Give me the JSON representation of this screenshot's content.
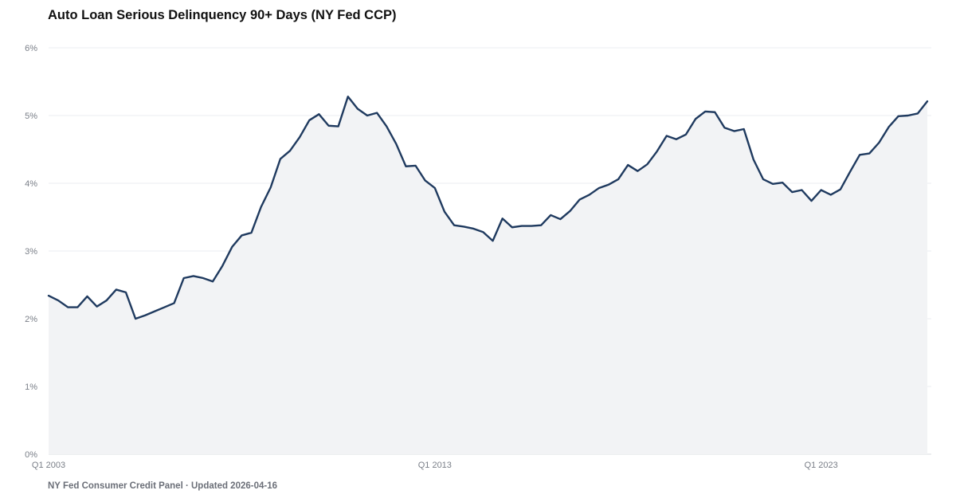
{
  "header": {
    "title": "Auto Loan Serious Delinquency 90+ Days (NY Fed CCP)"
  },
  "footer": {
    "source": "NY Fed Consumer Credit Panel · Updated 2026-04-16"
  },
  "colors": {
    "line": "#1f3a5f",
    "area": "#f2f3f5",
    "grid": "#ebedf0",
    "axis": "#d9dce1"
  },
  "chart_data": {
    "type": "area",
    "title": "Auto Loan Serious Delinquency 90+ Days (NY Fed CCP)",
    "xlabel": "",
    "ylabel": "",
    "ylim": [
      0,
      6
    ],
    "grid": true,
    "legend": "none",
    "y_ticks": [
      "0%",
      "1%",
      "2%",
      "3%",
      "4%",
      "5%",
      "6%"
    ],
    "x_ticks": [
      {
        "index": 0,
        "label": "Q1 2003"
      },
      {
        "index": 40,
        "label": "Q1 2013"
      },
      {
        "index": 80,
        "label": "Q1 2023"
      }
    ],
    "series": [
      {
        "values": [
          2.34,
          2.27,
          2.17,
          2.17,
          2.33,
          2.18,
          2.27,
          2.43,
          2.39,
          2.0,
          2.05,
          2.11,
          2.17,
          2.23,
          2.6,
          2.63,
          2.6,
          2.55,
          2.78,
          3.06,
          3.23,
          3.27,
          3.65,
          3.94,
          4.36,
          4.48,
          4.68,
          4.93,
          5.02,
          4.85,
          4.84,
          5.28,
          5.1,
          5.0,
          5.04,
          4.84,
          4.58,
          4.25,
          4.26,
          4.04,
          3.93,
          3.58,
          3.38,
          3.36,
          3.33,
          3.28,
          3.15,
          3.48,
          3.35,
          3.37,
          3.37,
          3.38,
          3.53,
          3.47,
          3.59,
          3.76,
          3.83,
          3.93,
          3.98,
          4.06,
          4.27,
          4.18,
          4.28,
          4.47,
          4.7,
          4.65,
          4.72,
          4.95,
          5.06,
          5.05,
          4.82,
          4.77,
          4.8,
          4.35,
          4.06,
          3.99,
          4.01,
          3.87,
          3.9,
          3.74,
          3.9,
          3.83,
          3.91,
          4.17,
          4.42,
          4.44,
          4.6,
          4.83,
          4.99,
          5.0,
          5.03,
          5.21
        ]
      }
    ]
  }
}
